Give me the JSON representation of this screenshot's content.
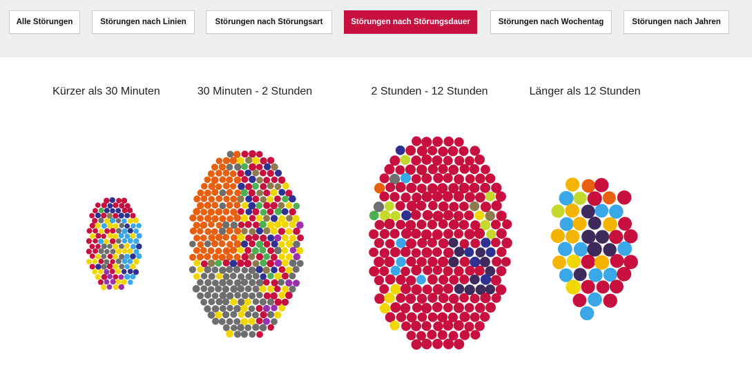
{
  "tabs": [
    {
      "label": "Alle Störungen",
      "active": false
    },
    {
      "label": "Störungen nach Linien",
      "active": false
    },
    {
      "label": "Störungen nach Störungsart",
      "active": false
    },
    {
      "label": "Störungen nach Störungsdauer",
      "active": true
    },
    {
      "label": "Störungen nach Wochentag",
      "active": false
    },
    {
      "label": "Störungen nach Jahren",
      "active": false
    }
  ],
  "groups": [
    {
      "title": "Kürzer als 30 Minuten"
    },
    {
      "title": "30 Minuten - 2 Stunden"
    },
    {
      "title": "2 Stunden - 12 Stunden"
    },
    {
      "title": "Länger als 12 Stunden"
    }
  ],
  "colors": {
    "accent": "#c8103e",
    "topbar_bg": "#efefef",
    "bubble_palette": [
      "#c8103e",
      "#e8600f",
      "#6e6e6e",
      "#f2d600",
      "#3aa7e8",
      "#2e3192",
      "#3f2a5c",
      "#4caf50",
      "#8d7b4f",
      "#9b2fae",
      "#c5d92d",
      "#f5b400"
    ]
  }
}
